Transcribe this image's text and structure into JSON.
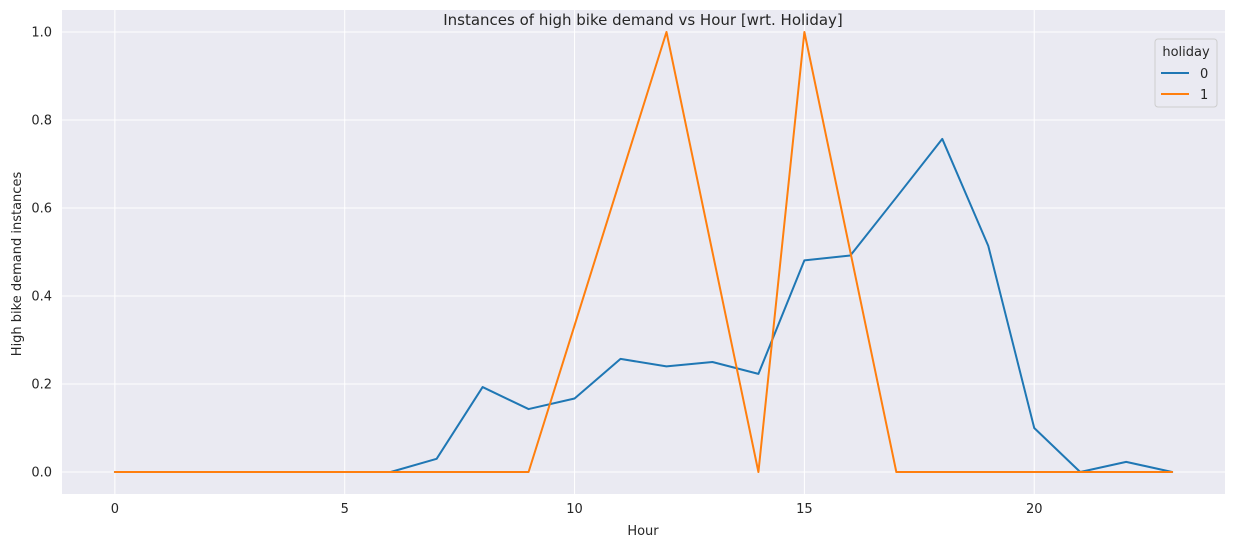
{
  "chart_data": {
    "type": "line",
    "title": "Instances of high bike demand vs Hour [wrt. Holiday]",
    "xlabel": "Hour",
    "ylabel": "High bike demand instances",
    "xlim": [
      -1.15,
      24.15
    ],
    "ylim": [
      -0.05,
      1.05
    ],
    "xticks": [
      0,
      5,
      10,
      15,
      20
    ],
    "xtick_labels": [
      "0",
      "5",
      "10",
      "15",
      "20"
    ],
    "yticks": [
      0.0,
      0.2,
      0.4,
      0.6,
      0.8,
      1.0
    ],
    "ytick_labels": [
      "0.0",
      "0.2",
      "0.4",
      "0.6",
      "0.8",
      "1.0"
    ],
    "grid": true,
    "legend": {
      "title": "holiday",
      "position": "top-right"
    },
    "x": [
      0,
      1,
      2,
      3,
      4,
      5,
      6,
      7,
      8,
      9,
      10,
      11,
      12,
      13,
      14,
      15,
      16,
      17,
      18,
      19,
      20,
      21,
      22,
      23
    ],
    "series": [
      {
        "name": "0",
        "color": "#1f77b4",
        "values": [
          0,
          0,
          0,
          0,
          0,
          0,
          0,
          0.03,
          0.193,
          0.143,
          0.167,
          0.257,
          0.24,
          0.25,
          0.223,
          0.481,
          0.492,
          0.624,
          0.757,
          0.514,
          0.1,
          0,
          0.023,
          0
        ]
      },
      {
        "name": "1",
        "color": "#ff7f0e",
        "values": [
          0,
          0,
          0,
          0,
          0,
          0,
          0,
          0,
          0,
          0,
          0.333,
          0.667,
          1.0,
          0.5,
          0,
          1.0,
          0.5,
          0,
          0,
          0,
          0,
          0,
          0,
          0
        ]
      }
    ]
  }
}
